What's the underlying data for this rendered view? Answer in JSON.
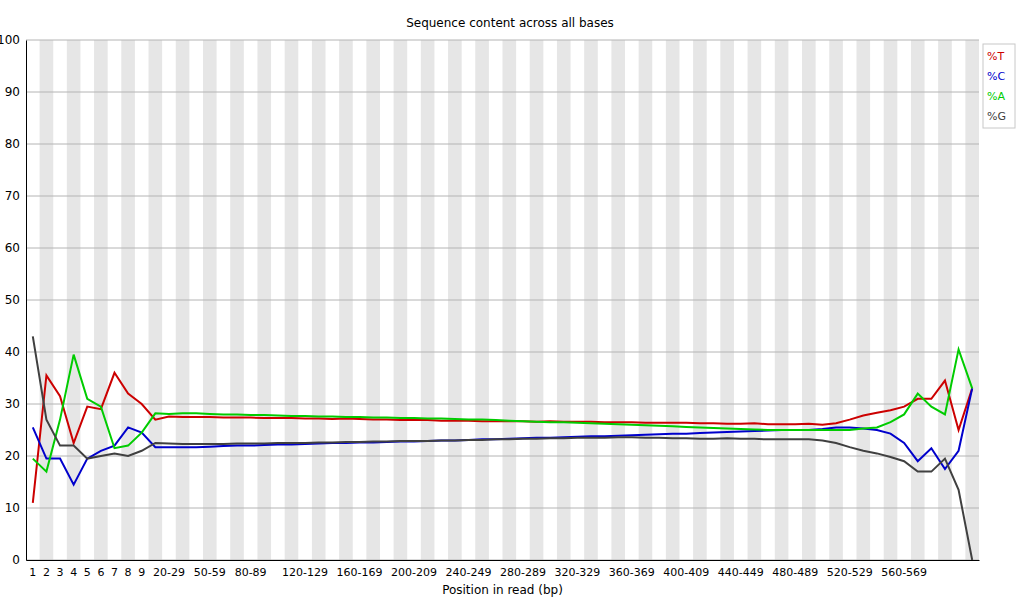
{
  "chart_data": {
    "type": "line",
    "title": "Sequence content across all bases",
    "x_label": "Position in read (bp)",
    "categories": [
      "1",
      "2",
      "3",
      "4",
      "5",
      "6",
      "7",
      "8",
      "9",
      null,
      "20-29",
      null,
      null,
      "50-59",
      null,
      null,
      "80-89",
      null,
      null,
      null,
      "120-129",
      null,
      null,
      null,
      "160-169",
      null,
      null,
      null,
      "200-209",
      null,
      null,
      null,
      "240-249",
      null,
      null,
      null,
      "280-289",
      null,
      null,
      null,
      "320-329",
      null,
      null,
      null,
      "360-369",
      null,
      null,
      null,
      "400-409",
      null,
      null,
      null,
      "440-449",
      null,
      null,
      null,
      "480-489",
      null,
      null,
      null,
      "520-529",
      null,
      null,
      null,
      "560-569",
      null,
      null,
      null,
      null,
      null
    ],
    "ylim": [
      0,
      100
    ],
    "yticks": [
      0,
      10,
      20,
      30,
      40,
      50,
      60,
      70,
      80,
      90,
      100
    ],
    "grid": true,
    "legend": "right",
    "series": [
      {
        "name": "%T",
        "color": "#cc0000",
        "values": [
          11,
          35.5,
          31.5,
          22.5,
          29.5,
          29,
          36,
          32,
          30,
          27,
          27.6,
          27.5,
          27.5,
          27.5,
          27.4,
          27.4,
          27.4,
          27.3,
          27.3,
          27.3,
          27.2,
          27.2,
          27.1,
          27.2,
          27.1,
          27.0,
          27.0,
          26.9,
          26.9,
          26.9,
          26.8,
          26.8,
          26.8,
          26.7,
          26.7,
          26.7,
          26.7,
          26.6,
          26.7,
          26.6,
          26.6,
          26.6,
          26.5,
          26.5,
          26.5,
          26.4,
          26.4,
          26.4,
          26.4,
          26.3,
          26.3,
          26.2,
          26.2,
          26.3,
          26.1,
          26.1,
          26.1,
          26.2,
          26,
          26.3,
          27,
          27.8,
          28.3,
          28.8,
          29.5,
          31,
          31,
          34.5,
          25,
          33
        ]
      },
      {
        "name": "%C",
        "color": "#0000cc",
        "values": [
          25.5,
          19.5,
          19.5,
          14.5,
          19.5,
          21,
          22,
          25.5,
          24.5,
          21.7,
          21.7,
          21.7,
          21.7,
          21.8,
          21.9,
          22.0,
          22.0,
          22.1,
          22.2,
          22.2,
          22.3,
          22.4,
          22.5,
          22.5,
          22.6,
          22.6,
          22.7,
          22.8,
          22.8,
          22.9,
          23.0,
          23.0,
          23.1,
          23.2,
          23.2,
          23.3,
          23.4,
          23.5,
          23.5,
          23.6,
          23.7,
          23.8,
          23.8,
          23.9,
          24.0,
          24.1,
          24.2,
          24.3,
          24.3,
          24.4,
          24.5,
          24.6,
          24.7,
          24.8,
          24.9,
          25.0,
          25.0,
          25,
          25.2,
          25.5,
          25.5,
          25.3,
          25,
          24.3,
          22.5,
          19,
          21.5,
          17.5,
          21,
          33
        ]
      },
      {
        "name": "%A",
        "color": "#00cc00",
        "values": [
          19.5,
          17,
          27,
          39.5,
          31,
          29.5,
          21.5,
          22,
          24.5,
          28.2,
          28.1,
          28.2,
          28.2,
          28.1,
          28.0,
          28.0,
          27.9,
          27.9,
          27.8,
          27.7,
          27.7,
          27.6,
          27.6,
          27.5,
          27.5,
          27.4,
          27.4,
          27.3,
          27.3,
          27.2,
          27.2,
          27.1,
          27.0,
          27.0,
          26.9,
          26.8,
          26.7,
          26.6,
          26.5,
          26.5,
          26.4,
          26.3,
          26.2,
          26.1,
          26.0,
          25.9,
          25.8,
          25.7,
          25.6,
          25.5,
          25.4,
          25.3,
          25.2,
          25.1,
          25.0,
          25.0,
          25.0,
          25,
          25,
          25,
          25,
          25.3,
          25.5,
          26.5,
          28,
          32,
          29.5,
          28,
          40.5,
          33
        ]
      },
      {
        "name": "%G",
        "color": "#404040",
        "values": [
          43,
          27,
          22,
          22,
          19.5,
          20,
          20.5,
          20,
          21,
          22.5,
          22.4,
          22.3,
          22.3,
          22.3,
          22.3,
          22.4,
          22.4,
          22.4,
          22.5,
          22.5,
          22.5,
          22.6,
          22.6,
          22.7,
          22.7,
          22.8,
          22.8,
          22.9,
          22.9,
          22.9,
          23.0,
          23.0,
          23.1,
          23.1,
          23.2,
          23.2,
          23.3,
          23.3,
          23.4,
          23.4,
          23.5,
          23.5,
          23.5,
          23.6,
          23.6,
          23.5,
          23.5,
          23.4,
          23.4,
          23.3,
          23.3,
          23.4,
          23.3,
          23.3,
          23.2,
          23.2,
          23.2,
          23.2,
          23,
          22.5,
          21.7,
          21,
          20.5,
          19.8,
          19,
          17,
          17,
          19.5,
          13.5,
          0
        ]
      }
    ]
  }
}
